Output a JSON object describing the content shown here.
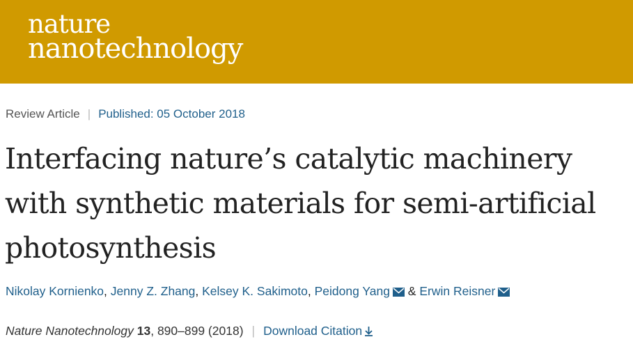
{
  "brand": {
    "line1": "nature",
    "line2": "nanotechnology",
    "color": "#d09a00"
  },
  "meta": {
    "article_type": "Review Article",
    "separator": "|",
    "published": "Published: 05 October 2018"
  },
  "title": "Interfacing nature’s catalytic machinery with synthetic materials for semi-artificial photosynthesis",
  "authors": [
    {
      "name": "Nikolay Kornienko",
      "after": ", "
    },
    {
      "name": "Jenny Z. Zhang",
      "after": ", "
    },
    {
      "name": "Kelsey K. Sakimoto",
      "after": ", "
    },
    {
      "name": "Peidong Yang",
      "after": " & "
    },
    {
      "name": "Erwin Reisner",
      "after": ""
    }
  ],
  "citation": {
    "journal": "Nature Nanotechnology",
    "volume": "13",
    "pages": ", 890–899 (2018)",
    "separator": "|",
    "download": "Download Citation"
  },
  "icons": {
    "mail": "envelope-icon",
    "download": "download-icon"
  },
  "colors": {
    "link": "#1f5f8b",
    "text": "#222222"
  }
}
